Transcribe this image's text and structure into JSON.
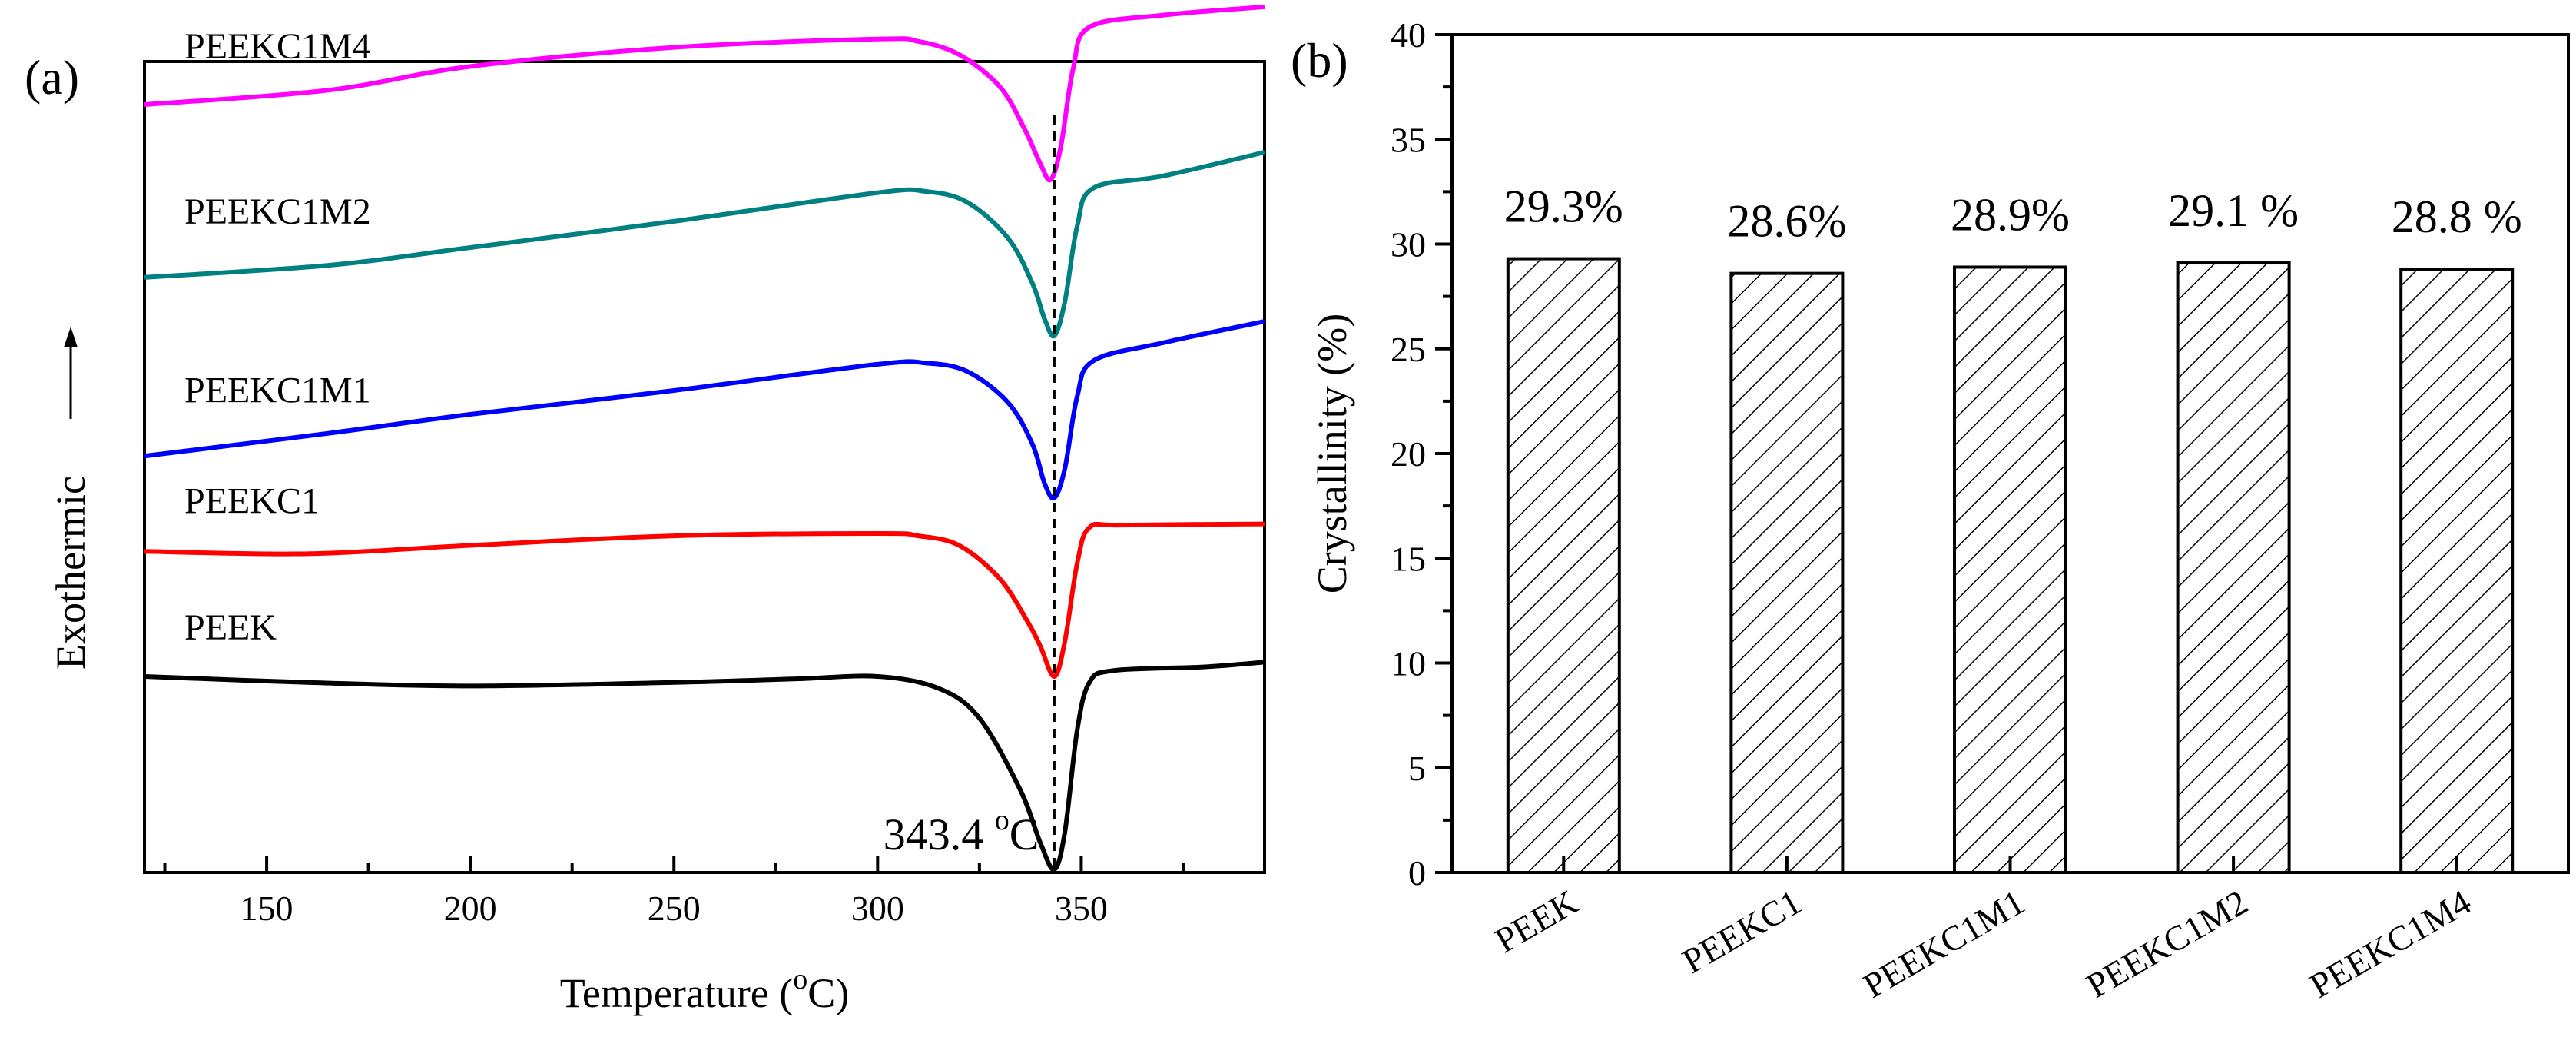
{
  "chart_data": [
    {
      "type": "line",
      "panel_label": "(a)",
      "xlabel": "Temperature (°C)",
      "xlabel_main": "Temperature (",
      "xlabel_sup": "o",
      "xlabel_tail": "C)",
      "ylabel": "Exothermic",
      "xlim": [
        120,
        395
      ],
      "xticks": [
        "150",
        "200",
        "250",
        "300",
        "350"
      ],
      "xtick_values": [
        150,
        200,
        250,
        300,
        350
      ],
      "y_units": "arbitrary heat flow (offset curves)",
      "peak_line_x": 343.4,
      "peak_label_main": "343.4 ",
      "peak_label_sup": "o",
      "peak_label_tail": "C",
      "series": [
        {
          "name": "PEEK",
          "color": "#000000",
          "label": "PEEK",
          "points": [
            [
              120,
              0.0
            ],
            [
              160,
              -0.05
            ],
            [
              200,
              -0.08
            ],
            [
              250,
              -0.05
            ],
            [
              280,
              -0.02
            ],
            [
              300,
              0.0
            ],
            [
              315,
              -0.1
            ],
            [
              325,
              -0.35
            ],
            [
              335,
              -0.95
            ],
            [
              340,
              -1.4
            ],
            [
              343.4,
              -1.62
            ],
            [
              346,
              -1.3
            ],
            [
              349,
              -0.45
            ],
            [
              352,
              -0.05
            ],
            [
              358,
              0.05
            ],
            [
              380,
              0.08
            ],
            [
              395,
              0.12
            ]
          ]
        },
        {
          "name": "PEEKC1",
          "color": "#ff0000",
          "label": "PEEKC1",
          "points": [
            [
              120,
              1.05
            ],
            [
              160,
              1.03
            ],
            [
              200,
              1.1
            ],
            [
              250,
              1.18
            ],
            [
              300,
              1.2
            ],
            [
              310,
              1.18
            ],
            [
              320,
              1.1
            ],
            [
              330,
              0.82
            ],
            [
              337,
              0.45
            ],
            [
              340,
              0.25
            ],
            [
              343.4,
              0.0
            ],
            [
              346,
              0.3
            ],
            [
              349,
              0.95
            ],
            [
              352,
              1.25
            ],
            [
              360,
              1.27
            ],
            [
              395,
              1.28
            ]
          ]
        },
        {
          "name": "PEEKC1M1",
          "color": "#0000ff",
          "label": "PEEKC1M1",
          "points": [
            [
              120,
              1.85
            ],
            [
              165,
              2.04
            ],
            [
              200,
              2.2
            ],
            [
              250,
              2.4
            ],
            [
              300,
              2.62
            ],
            [
              312,
              2.63
            ],
            [
              322,
              2.56
            ],
            [
              332,
              2.3
            ],
            [
              338,
              1.95
            ],
            [
              341,
              1.62
            ],
            [
              343.4,
              1.5
            ],
            [
              346,
              1.75
            ],
            [
              349,
              2.35
            ],
            [
              353,
              2.65
            ],
            [
              370,
              2.8
            ],
            [
              395,
              2.98
            ]
          ]
        },
        {
          "name": "PEEKC1M2",
          "color": "#008080",
          "label": "PEEKC1M2",
          "points": [
            [
              120,
              3.35
            ],
            [
              165,
              3.45
            ],
            [
              200,
              3.6
            ],
            [
              250,
              3.82
            ],
            [
              300,
              4.06
            ],
            [
              312,
              4.07
            ],
            [
              322,
              3.98
            ],
            [
              332,
              3.68
            ],
            [
              338,
              3.3
            ],
            [
              341,
              3.0
            ],
            [
              343.4,
              2.86
            ],
            [
              346,
              3.15
            ],
            [
              349,
              3.78
            ],
            [
              353,
              4.1
            ],
            [
              370,
              4.2
            ],
            [
              395,
              4.4
            ]
          ]
        },
        {
          "name": "PEEKC1M4",
          "color": "#ff00ff",
          "label": "PEEKC1M4",
          "points": [
            [
              120,
              4.8
            ],
            [
              165,
              4.92
            ],
            [
              200,
              5.12
            ],
            [
              250,
              5.28
            ],
            [
              300,
              5.35
            ],
            [
              310,
              5.33
            ],
            [
              320,
              5.22
            ],
            [
              330,
              4.95
            ],
            [
              336,
              4.6
            ],
            [
              340,
              4.3
            ],
            [
              342.5,
              4.17
            ],
            [
              345,
              4.45
            ],
            [
              348,
              5.1
            ],
            [
              352,
              5.45
            ],
            [
              370,
              5.55
            ],
            [
              395,
              5.62
            ]
          ]
        }
      ]
    },
    {
      "type": "bar",
      "panel_label": "(b)",
      "ylabel": "Crystallinity (%)",
      "xlabel": "",
      "ylim": [
        0,
        40
      ],
      "yticks": [
        "0",
        "5",
        "10",
        "15",
        "20",
        "25",
        "30",
        "35",
        "40"
      ],
      "ytick_values": [
        0,
        5,
        10,
        15,
        20,
        25,
        30,
        35,
        40
      ],
      "categories": [
        "PEEK",
        "PEEKC1",
        "PEEKC1M1",
        "PEEKC1M2",
        "PEEKC1M4"
      ],
      "values": [
        29.3,
        28.6,
        28.9,
        29.1,
        28.8
      ],
      "data_labels": [
        "29.3%",
        "28.6%",
        "28.9%",
        "29.1 %",
        "28.8 %"
      ],
      "bar_fill": "hatched"
    }
  ]
}
